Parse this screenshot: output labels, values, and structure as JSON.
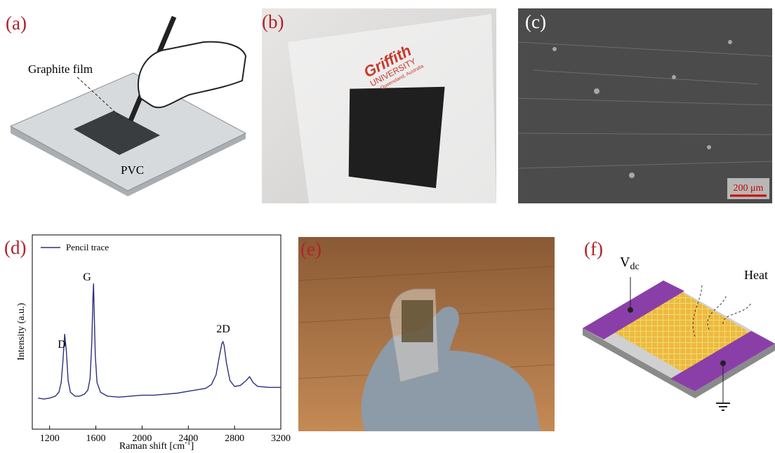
{
  "panels": {
    "a": {
      "label": "(a)",
      "film_label": "Graphite film",
      "substrate_label": "PVC"
    },
    "b": {
      "label": "(b)",
      "logo": [
        "Griffith",
        "UNIVERSITY",
        "Queensland, Australia"
      ]
    },
    "c": {
      "label": "(c)",
      "scale_bar": "200 μm"
    },
    "e": {
      "label": "(e)"
    },
    "f": {
      "label": "(f)",
      "voltage": "V",
      "voltage_sub": "dc",
      "heat": "Heat"
    }
  },
  "chart_data": {
    "type": "line",
    "label": "(d)",
    "x_label": "Raman shift [cm",
    "x_label_sup": "-1",
    "x_label_end": "]",
    "y_label": "Intensity (a.u.)",
    "x": [
      1100,
      1150,
      1200,
      1250,
      1280,
      1300,
      1315,
      1330,
      1345,
      1360,
      1380,
      1420,
      1460,
      1500,
      1530,
      1550,
      1565,
      1575,
      1580,
      1585,
      1595,
      1610,
      1640,
      1700,
      1800,
      1900,
      2000,
      2100,
      2200,
      2300,
      2400,
      2450,
      2500,
      2550,
      2600,
      2640,
      2670,
      2690,
      2700,
      2710,
      2730,
      2760,
      2800,
      2850,
      2900,
      2930,
      2960,
      3000,
      3100,
      3200
    ],
    "series": [
      {
        "name": "Pencil trace",
        "color": "#2b2f7e",
        "values": [
          16,
          15.5,
          16,
          17,
          19,
          24,
          35,
          49,
          40,
          25,
          19,
          17,
          17,
          18,
          20,
          26,
          45,
          68,
          75,
          62,
          38,
          24,
          19,
          17,
          16.5,
          17,
          17.5,
          17.5,
          18,
          18.5,
          19.5,
          20,
          20.5,
          21,
          23,
          28,
          38,
          44,
          45,
          43,
          34,
          25,
          22,
          22.5,
          25,
          27,
          24,
          22,
          21.5,
          21.5
        ]
      }
    ],
    "annotations": [
      "D",
      "G",
      "2D"
    ],
    "xlim": [
      1050,
      3200
    ],
    "ylim": [
      0,
      100
    ],
    "xticks": [
      1200,
      1600,
      2000,
      2400,
      2800,
      3200
    ]
  }
}
